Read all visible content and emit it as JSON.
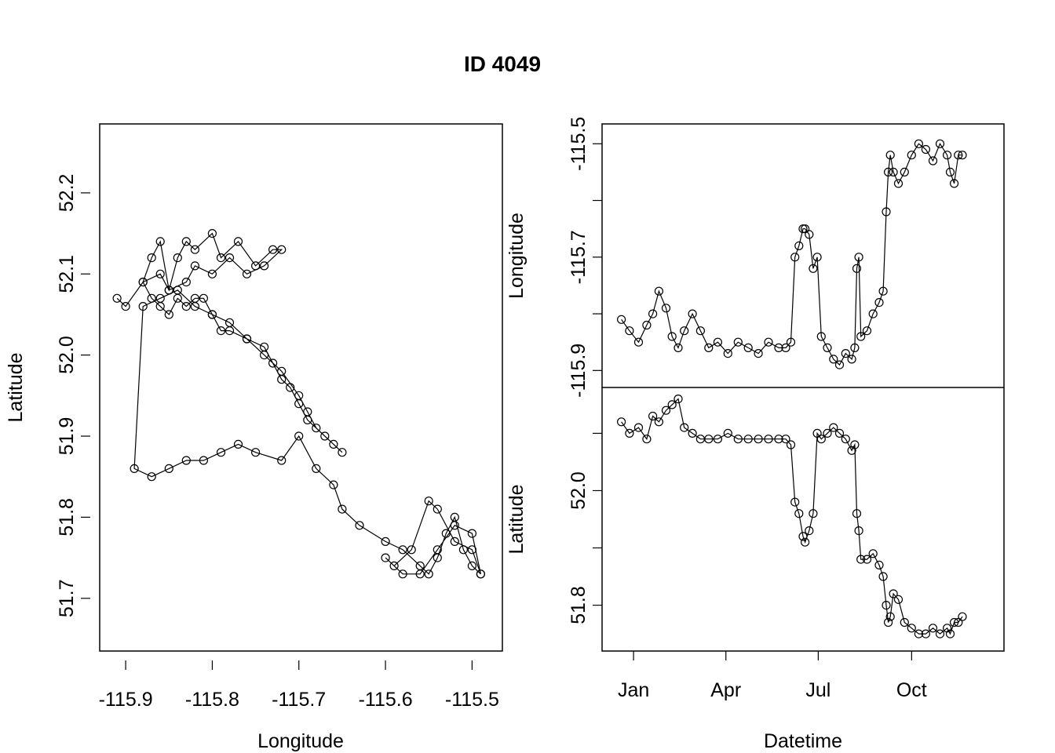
{
  "figure": {
    "title": "ID 4049"
  },
  "chart_data": [
    {
      "type": "line",
      "markers": "open-circle",
      "title": "",
      "xlabel": "Longitude",
      "ylabel": "Latitude",
      "xlim": [
        -115.93,
        -115.465
      ],
      "ylim": [
        51.635,
        52.285
      ],
      "xticks": [
        -115.9,
        -115.8,
        -115.7,
        -115.6,
        -115.5
      ],
      "xtick_labels": [
        "-115.9",
        "-115.8",
        "-115.7",
        "-115.6",
        "-115.5"
      ],
      "yticks": [
        51.7,
        51.8,
        51.9,
        52.0,
        52.1,
        52.2
      ],
      "ytick_labels": [
        "51.7",
        "51.8",
        "51.9",
        "52.0",
        "52.1",
        "52.2"
      ],
      "grid": false,
      "legend": "none",
      "series": [
        {
          "x": [
            -115.91,
            -115.9,
            -115.88,
            -115.86,
            -115.85,
            -115.84,
            -115.83,
            -115.82,
            -115.8,
            -115.79,
            -115.77,
            -115.75,
            -115.73,
            -115.72,
            -115.74,
            -115.76,
            -115.78,
            -115.8,
            -115.82,
            -115.83,
            -115.85,
            -115.86,
            -115.87,
            -115.88,
            -115.87,
            -115.86,
            -115.85,
            -115.84,
            -115.83,
            -115.82,
            -115.81,
            -115.8,
            -115.79,
            -115.78,
            -115.76,
            -115.74,
            -115.72,
            -115.7,
            -115.69,
            -115.68,
            -115.66,
            -115.65,
            -115.67,
            -115.69,
            -115.7,
            -115.71,
            -115.72,
            -115.73,
            -115.74,
            -115.76,
            -115.78,
            -115.8,
            -115.82,
            -115.84,
            -115.86,
            -115.88,
            -115.89,
            -115.87,
            -115.85,
            -115.83,
            -115.81,
            -115.79,
            -115.77,
            -115.75,
            -115.72,
            -115.7,
            -115.68,
            -115.66,
            -115.65,
            -115.63,
            -115.6,
            -115.58,
            -115.56,
            -115.55,
            -115.54,
            -115.53,
            -115.52,
            -115.51,
            -115.5,
            -115.49,
            -115.5,
            -115.52,
            -115.54,
            -115.55,
            -115.57,
            -115.59,
            -115.6,
            -115.58,
            -115.56,
            -115.54,
            -115.52,
            -115.5,
            -115.49
          ],
          "y": [
            52.07,
            52.06,
            52.09,
            52.1,
            52.08,
            52.12,
            52.14,
            52.13,
            52.15,
            52.12,
            52.14,
            52.11,
            52.13,
            52.13,
            52.11,
            52.1,
            52.12,
            52.1,
            52.11,
            52.09,
            52.08,
            52.14,
            52.12,
            52.09,
            52.07,
            52.06,
            52.05,
            52.07,
            52.06,
            52.07,
            52.07,
            52.05,
            52.03,
            52.03,
            52.02,
            52.0,
            51.98,
            51.95,
            51.93,
            51.91,
            51.89,
            51.88,
            51.9,
            51.92,
            51.94,
            51.96,
            51.97,
            51.99,
            52.01,
            52.02,
            52.04,
            52.05,
            52.06,
            52.08,
            52.07,
            52.06,
            51.86,
            51.85,
            51.86,
            51.87,
            51.87,
            51.88,
            51.89,
            51.88,
            51.87,
            51.9,
            51.86,
            51.84,
            51.81,
            51.79,
            51.77,
            51.76,
            51.74,
            51.73,
            51.75,
            51.78,
            51.8,
            51.76,
            51.74,
            51.73,
            51.76,
            51.77,
            51.81,
            51.82,
            51.76,
            51.74,
            51.75,
            51.73,
            51.73,
            51.76,
            51.79,
            51.78,
            51.73
          ]
        }
      ]
    },
    {
      "type": "line",
      "markers": "open-circle",
      "title": "",
      "xlabel": "",
      "ylabel": "Longitude",
      "xlim": [
        "2015-12-01",
        "2016-12-31"
      ],
      "ylim": [
        -115.93,
        -115.465
      ],
      "xticks": [
        "2016-01-01",
        "2016-04-01",
        "2016-07-01",
        "2016-10-01"
      ],
      "yticks": [
        -115.9,
        -115.8,
        -115.7,
        -115.6,
        -115.5
      ],
      "ytick_labels": [
        "-115.9",
        "",
        "-115.7",
        "",
        "-115.5"
      ],
      "grid": false,
      "legend": "none",
      "series": [
        {
          "x": [
            "2015-12-20",
            "2015-12-28",
            "2016-01-06",
            "2016-01-14",
            "2016-01-20",
            "2016-01-26",
            "2016-02-02",
            "2016-02-08",
            "2016-02-14",
            "2016-02-20",
            "2016-02-28",
            "2016-03-07",
            "2016-03-15",
            "2016-03-24",
            "2016-04-03",
            "2016-04-13",
            "2016-04-23",
            "2016-05-03",
            "2016-05-13",
            "2016-05-23",
            "2016-05-30",
            "2016-06-04",
            "2016-06-08",
            "2016-06-12",
            "2016-06-16",
            "2016-06-18",
            "2016-06-22",
            "2016-06-26",
            "2016-06-30",
            "2016-07-04",
            "2016-07-10",
            "2016-07-16",
            "2016-07-22",
            "2016-07-28",
            "2016-08-03",
            "2016-08-06",
            "2016-08-08",
            "2016-08-10",
            "2016-08-12",
            "2016-08-18",
            "2016-08-24",
            "2016-08-30",
            "2016-09-03",
            "2016-09-06",
            "2016-09-08",
            "2016-09-10",
            "2016-09-13",
            "2016-09-18",
            "2016-09-24",
            "2016-10-01",
            "2016-10-08",
            "2016-10-15",
            "2016-10-22",
            "2016-10-29",
            "2016-11-05",
            "2016-11-08",
            "2016-11-12",
            "2016-11-16",
            "2016-11-20"
          ],
          "y": [
            -115.81,
            -115.83,
            -115.85,
            -115.82,
            -115.8,
            -115.76,
            -115.79,
            -115.84,
            -115.86,
            -115.83,
            -115.8,
            -115.83,
            -115.86,
            -115.85,
            -115.87,
            -115.85,
            -115.86,
            -115.87,
            -115.85,
            -115.86,
            -115.86,
            -115.85,
            -115.7,
            -115.68,
            -115.65,
            -115.65,
            -115.66,
            -115.72,
            -115.7,
            -115.84,
            -115.86,
            -115.88,
            -115.89,
            -115.87,
            -115.88,
            -115.86,
            -115.72,
            -115.7,
            -115.84,
            -115.83,
            -115.8,
            -115.78,
            -115.76,
            -115.62,
            -115.55,
            -115.52,
            -115.55,
            -115.57,
            -115.55,
            -115.52,
            -115.5,
            -115.51,
            -115.53,
            -115.5,
            -115.52,
            -115.55,
            -115.57,
            -115.52,
            -115.52
          ]
        }
      ]
    },
    {
      "type": "line",
      "markers": "open-circle",
      "title": "",
      "xlabel": "Datetime",
      "ylabel": "Latitude",
      "xlim": [
        "2015-12-01",
        "2016-12-31"
      ],
      "ylim": [
        51.72,
        52.18
      ],
      "xticks": [
        "2016-01-01",
        "2016-04-01",
        "2016-07-01",
        "2016-10-01"
      ],
      "xtick_labels": [
        "Jan",
        "Apr",
        "Jul",
        "Oct"
      ],
      "yticks": [
        51.8,
        51.9,
        52.0,
        52.1
      ],
      "ytick_labels": [
        "51.8",
        "",
        "52.0",
        ""
      ],
      "grid": false,
      "legend": "none",
      "series": [
        {
          "x": [
            "2015-12-20",
            "2015-12-28",
            "2016-01-06",
            "2016-01-14",
            "2016-01-20",
            "2016-01-26",
            "2016-02-02",
            "2016-02-08",
            "2016-02-14",
            "2016-02-20",
            "2016-02-28",
            "2016-03-07",
            "2016-03-15",
            "2016-03-24",
            "2016-04-03",
            "2016-04-13",
            "2016-04-23",
            "2016-05-03",
            "2016-05-13",
            "2016-05-23",
            "2016-05-30",
            "2016-06-04",
            "2016-06-08",
            "2016-06-12",
            "2016-06-16",
            "2016-06-18",
            "2016-06-22",
            "2016-06-26",
            "2016-06-30",
            "2016-07-04",
            "2016-07-10",
            "2016-07-16",
            "2016-07-22",
            "2016-07-28",
            "2016-08-03",
            "2016-08-06",
            "2016-08-08",
            "2016-08-10",
            "2016-08-12",
            "2016-08-18",
            "2016-08-24",
            "2016-08-30",
            "2016-09-03",
            "2016-09-06",
            "2016-09-08",
            "2016-09-10",
            "2016-09-13",
            "2016-09-18",
            "2016-09-24",
            "2016-10-01",
            "2016-10-08",
            "2016-10-15",
            "2016-10-22",
            "2016-10-29",
            "2016-11-05",
            "2016-11-08",
            "2016-11-12",
            "2016-11-16",
            "2016-11-20"
          ],
          "y": [
            52.12,
            52.1,
            52.11,
            52.09,
            52.13,
            52.12,
            52.14,
            52.15,
            52.16,
            52.11,
            52.1,
            52.09,
            52.09,
            52.09,
            52.1,
            52.09,
            52.09,
            52.09,
            52.09,
            52.09,
            52.09,
            52.08,
            51.98,
            51.96,
            51.92,
            51.91,
            51.93,
            51.96,
            52.1,
            52.09,
            52.1,
            52.11,
            52.1,
            52.09,
            52.07,
            52.08,
            51.96,
            51.93,
            51.88,
            51.88,
            51.89,
            51.87,
            51.85,
            51.8,
            51.77,
            51.78,
            51.82,
            51.81,
            51.77,
            51.76,
            51.75,
            51.75,
            51.76,
            51.75,
            51.76,
            51.75,
            51.77,
            51.77,
            51.78
          ]
        }
      ]
    }
  ]
}
